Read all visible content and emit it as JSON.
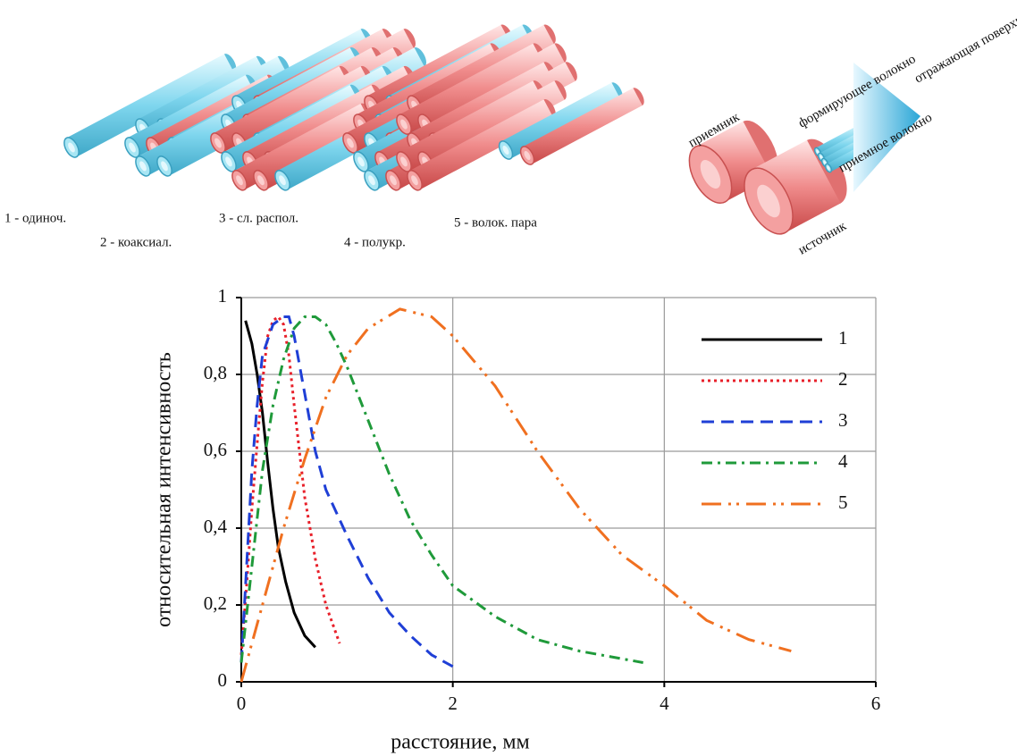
{
  "diagram_left": {
    "labels": [
      "1 - одиноч.",
      "2 - коаксиал.",
      "3 - сл. распол.",
      "4 - полукр.",
      "5 - волок. пара"
    ]
  },
  "diagram_right": {
    "labels": [
      "приемник",
      "формирующее волокно",
      "приемное волокно",
      "отражающая поверхность",
      "источник"
    ]
  },
  "chart_data": {
    "type": "line",
    "x_label": "расстояние, мм",
    "y_label": "относительная интенсивность",
    "xlim": [
      0,
      6
    ],
    "ylim": [
      0,
      1
    ],
    "xticks": [
      0,
      2,
      4,
      6
    ],
    "yticks": [
      0,
      {
        "value": 0.2,
        "label": "0,2"
      },
      {
        "value": 0.4,
        "label": "0,4"
      },
      {
        "value": 0.6,
        "label": "0,6"
      },
      {
        "value": 0.8,
        "label": "0,8"
      },
      1
    ],
    "grid": true,
    "legend": "upper right",
    "series": [
      {
        "name": "1",
        "color": "#000000",
        "dash": "solid",
        "x": [
          0.04,
          0.1,
          0.15,
          0.2,
          0.25,
          0.3,
          0.35,
          0.42,
          0.5,
          0.6,
          0.7
        ],
        "values": [
          0.94,
          0.88,
          0.8,
          0.7,
          0.57,
          0.45,
          0.35,
          0.26,
          0.18,
          0.12,
          0.09
        ]
      },
      {
        "name": "2",
        "color": "#e8202a",
        "dash": "dotted",
        "x": [
          0,
          0.05,
          0.1,
          0.15,
          0.2,
          0.25,
          0.3,
          0.35,
          0.4,
          0.45,
          0.5,
          0.55,
          0.6,
          0.7,
          0.8,
          0.93
        ],
        "values": [
          0.07,
          0.25,
          0.45,
          0.62,
          0.78,
          0.9,
          0.94,
          0.95,
          0.93,
          0.85,
          0.72,
          0.6,
          0.48,
          0.32,
          0.2,
          0.1
        ]
      },
      {
        "name": "3",
        "color": "#1f3fd6",
        "dash": "dashed",
        "x": [
          0,
          0.05,
          0.1,
          0.15,
          0.2,
          0.3,
          0.4,
          0.45,
          0.5,
          0.6,
          0.7,
          0.8,
          1.0,
          1.2,
          1.4,
          1.6,
          1.8,
          2.0
        ],
        "values": [
          0.05,
          0.3,
          0.55,
          0.72,
          0.85,
          0.93,
          0.95,
          0.95,
          0.9,
          0.75,
          0.6,
          0.5,
          0.38,
          0.27,
          0.18,
          0.12,
          0.07,
          0.04
        ]
      },
      {
        "name": "4",
        "color": "#1f9a3a",
        "dash": "dashdot",
        "x": [
          0,
          0.1,
          0.2,
          0.3,
          0.4,
          0.5,
          0.6,
          0.7,
          0.8,
          0.9,
          1.0,
          1.2,
          1.4,
          1.6,
          1.8,
          2.0,
          2.4,
          2.8,
          3.2,
          3.8
        ],
        "values": [
          0.05,
          0.3,
          0.55,
          0.72,
          0.84,
          0.92,
          0.95,
          0.95,
          0.93,
          0.88,
          0.82,
          0.68,
          0.54,
          0.42,
          0.33,
          0.25,
          0.17,
          0.11,
          0.08,
          0.05
        ]
      },
      {
        "name": "5",
        "color": "#f07020",
        "dash": "longdashdotdot",
        "x": [
          0,
          0.2,
          0.4,
          0.6,
          0.8,
          1.0,
          1.2,
          1.5,
          1.8,
          2.0,
          2.4,
          2.8,
          3.2,
          3.6,
          4.0,
          4.4,
          4.8,
          5.2
        ],
        "values": [
          0,
          0.2,
          0.4,
          0.58,
          0.74,
          0.85,
          0.92,
          0.97,
          0.95,
          0.9,
          0.77,
          0.6,
          0.45,
          0.33,
          0.25,
          0.16,
          0.11,
          0.08
        ]
      }
    ]
  }
}
